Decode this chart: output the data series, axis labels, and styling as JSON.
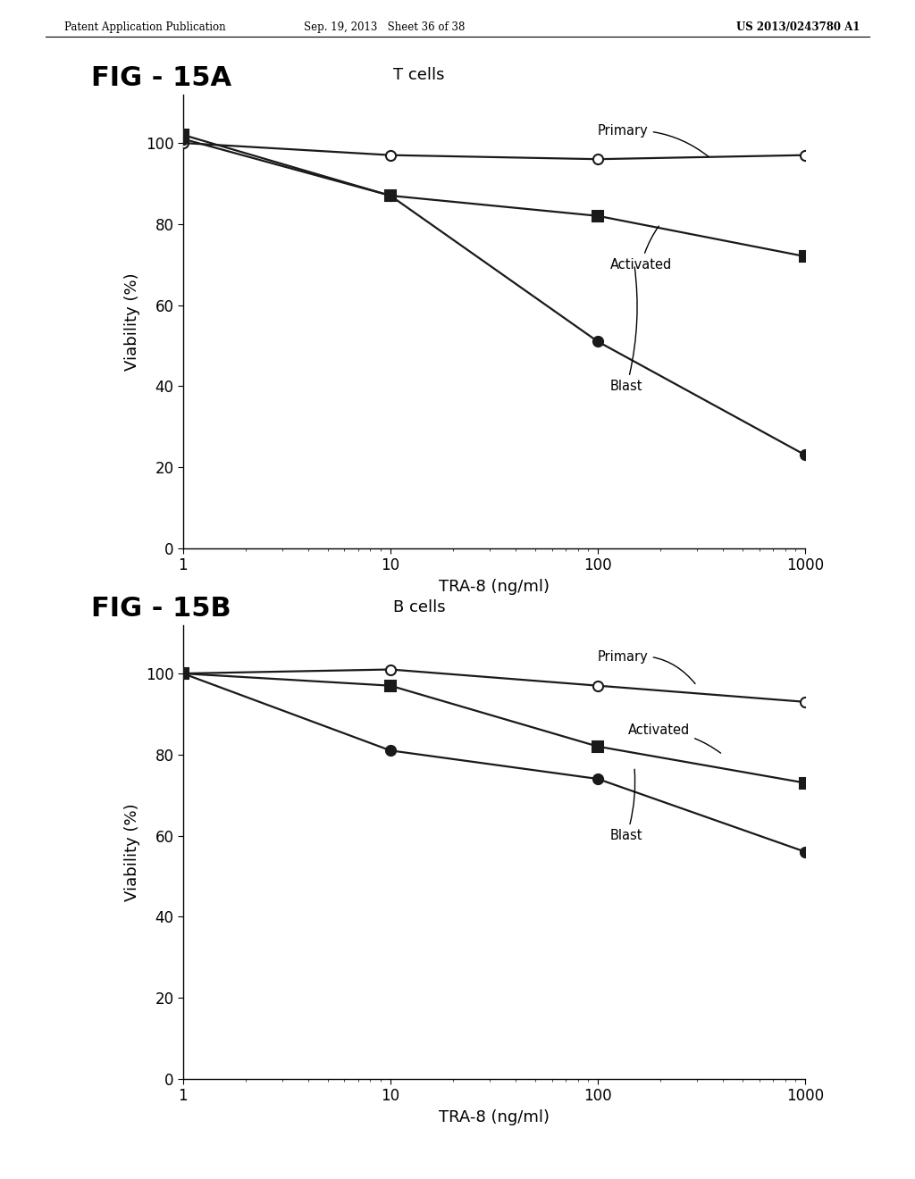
{
  "header_left": "Patent Application Publication",
  "header_center": "Sep. 19, 2013   Sheet 36 of 38",
  "header_right": "US 2013/0243780 A1",
  "fig_A": {
    "title_fig": "FIG - 15A",
    "title_sub": "T cells",
    "xlabel": "TRA-8 (ng/ml)",
    "ylabel": "Viability (%)",
    "x": [
      1,
      10,
      100,
      1000
    ],
    "primary": [
      100,
      97,
      96,
      97
    ],
    "activated": [
      102,
      87,
      82,
      72
    ],
    "blast": [
      101,
      87,
      51,
      23
    ],
    "ylim": [
      0,
      112
    ],
    "yticks": [
      0,
      20,
      40,
      60,
      80,
      100
    ]
  },
  "fig_B": {
    "title_fig": "FIG - 15B",
    "title_sub": "B cells",
    "xlabel": "TRA-8 (ng/ml)",
    "ylabel": "Viability (%)",
    "x": [
      1,
      10,
      100,
      1000
    ],
    "primary": [
      100,
      101,
      97,
      93
    ],
    "activated": [
      100,
      97,
      82,
      73
    ],
    "blast": [
      100,
      81,
      74,
      56
    ],
    "ylim": [
      0,
      112
    ],
    "yticks": [
      0,
      20,
      40,
      60,
      80,
      100
    ]
  },
  "bg_color": "#ffffff",
  "line_color": "#1a1a1a",
  "marker_size": 8,
  "linewidth": 1.6
}
